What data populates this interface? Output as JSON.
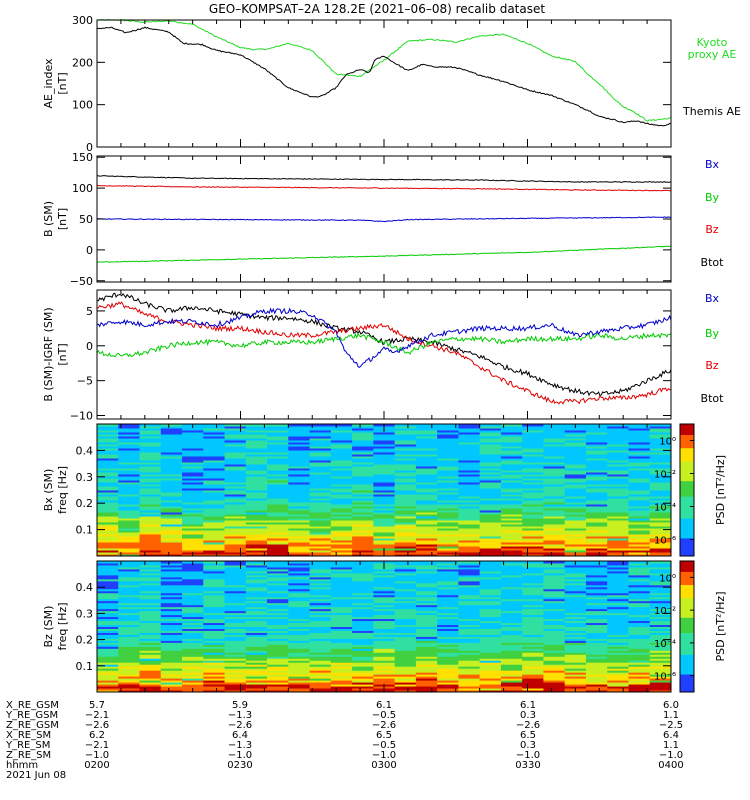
{
  "title": "GEO–KOMPSAT–2A 128.2E (2021–06–08) recalib dataset",
  "colors": {
    "black": "#000000",
    "red": "#e00000",
    "green": "#00cc00",
    "blue": "#0000cc",
    "kyoto": "#22dd22"
  },
  "chart_data": [
    {
      "type": "line",
      "panel": "ae",
      "ylabel": "AE_index",
      "yunit": "[nT]",
      "ylim": [
        0,
        300
      ],
      "yticks": [
        0,
        100,
        200,
        300
      ],
      "xlim": [
        0,
        120
      ],
      "series": [
        {
          "name": "Kyoto proxy AE",
          "label_lines": [
            "Kyoto",
            "proxy AE"
          ],
          "color": "#22dd22",
          "x": [
            0,
            5,
            10,
            15,
            20,
            25,
            30,
            33,
            36,
            40,
            45,
            50,
            55,
            60,
            65,
            70,
            75,
            80,
            85,
            90,
            95,
            100,
            103,
            105,
            108,
            110,
            112,
            115,
            120
          ],
          "y": [
            300,
            300,
            295,
            298,
            290,
            260,
            235,
            230,
            232,
            245,
            228,
            172,
            167,
            205,
            250,
            254,
            248,
            262,
            266,
            245,
            215,
            202,
            168,
            150,
            115,
            95,
            85,
            62,
            68
          ]
        },
        {
          "name": "Themis AE",
          "label_lines": [
            "Themis AE"
          ],
          "color": "#000000",
          "x": [
            0,
            3,
            6,
            10,
            15,
            18,
            22,
            25,
            28,
            30,
            35,
            40,
            45,
            47,
            50,
            52,
            55,
            57,
            58,
            60,
            62,
            65,
            68,
            70,
            75,
            80,
            85,
            90,
            95,
            100,
            103,
            105,
            108,
            110,
            113,
            115,
            118,
            120
          ],
          "y": [
            280,
            282,
            270,
            282,
            272,
            245,
            242,
            228,
            222,
            218,
            185,
            140,
            118,
            120,
            140,
            170,
            183,
            175,
            205,
            215,
            200,
            180,
            195,
            190,
            188,
            170,
            155,
            135,
            122,
            100,
            85,
            72,
            65,
            58,
            62,
            55,
            50,
            55
          ]
        }
      ]
    },
    {
      "type": "line",
      "panel": "b",
      "ylabel": "B (SM)",
      "yunit": "[nT]",
      "ylim": [
        -52,
        152
      ],
      "yticks": [
        -50,
        0,
        50,
        100,
        150
      ],
      "xlim": [
        0,
        120
      ],
      "series": [
        {
          "name": "Btot",
          "color": "#000000",
          "x": [
            0,
            20,
            40,
            60,
            80,
            100,
            120
          ],
          "y": [
            120,
            116,
            115,
            114,
            113,
            110,
            110
          ]
        },
        {
          "name": "Bz",
          "color": "#e00000",
          "x": [
            0,
            20,
            40,
            60,
            80,
            100,
            120
          ],
          "y": [
            104,
            102,
            101,
            100,
            99,
            97,
            96
          ]
        },
        {
          "name": "By",
          "color": "#00cc00",
          "x": [
            0,
            30,
            60,
            90,
            120
          ],
          "y": [
            -20,
            -15,
            -10,
            -4,
            6
          ]
        },
        {
          "name": "Bx",
          "color": "#0000cc",
          "x": [
            0,
            30,
            55,
            60,
            65,
            90,
            120
          ],
          "y": [
            50,
            49,
            48,
            46,
            49,
            51,
            53
          ]
        }
      ]
    },
    {
      "type": "line",
      "panel": "dbig",
      "ylabel": "B (SM)-IGRF (SM)",
      "yunit": "[nT]",
      "ylim": [
        -10.5,
        8
      ],
      "yticks": [
        -10,
        -5,
        0,
        5
      ],
      "xlim": [
        0,
        120
      ],
      "series": [
        {
          "name": "Btot",
          "color": "#000000",
          "x": [
            0,
            5,
            10,
            15,
            20,
            25,
            30,
            35,
            40,
            45,
            50,
            55,
            60,
            65,
            70,
            75,
            80,
            85,
            90,
            95,
            100,
            105,
            110,
            115,
            120
          ],
          "y": [
            6.5,
            7.5,
            6,
            5,
            5.5,
            5,
            4.5,
            4,
            4,
            3.5,
            2.5,
            2,
            0.5,
            1,
            0.5,
            -0.5,
            -1.5,
            -3,
            -4,
            -5.5,
            -6.5,
            -7,
            -6.5,
            -5,
            -3.5
          ]
        },
        {
          "name": "Bz",
          "color": "#e00000",
          "x": [
            0,
            5,
            10,
            15,
            20,
            25,
            30,
            35,
            40,
            45,
            50,
            55,
            60,
            65,
            70,
            75,
            80,
            85,
            90,
            95,
            100,
            105,
            110,
            115,
            120
          ],
          "y": [
            5.5,
            6,
            4.5,
            3.5,
            3,
            2.5,
            2.5,
            2,
            1.5,
            1.5,
            2,
            2.5,
            3,
            1,
            0,
            -1,
            -3,
            -5,
            -6.5,
            -8,
            -8,
            -7.5,
            -7.5,
            -7,
            -6
          ]
        },
        {
          "name": "By",
          "color": "#00cc00",
          "x": [
            0,
            5,
            10,
            15,
            20,
            25,
            30,
            35,
            40,
            45,
            50,
            55,
            60,
            65,
            70,
            75,
            80,
            85,
            90,
            95,
            100,
            105,
            110,
            115,
            120
          ],
          "y": [
            -1,
            -1.5,
            -1,
            0,
            0.5,
            0.5,
            0,
            0.5,
            0.5,
            0.5,
            1,
            1.5,
            0.5,
            -1,
            0.5,
            1,
            1,
            0.5,
            1,
            1,
            1,
            1.5,
            1,
            1.5,
            1.5
          ]
        },
        {
          "name": "Bx",
          "color": "#0000cc",
          "x": [
            0,
            5,
            10,
            15,
            20,
            25,
            30,
            35,
            40,
            45,
            50,
            52,
            55,
            58,
            60,
            62,
            65,
            70,
            75,
            80,
            85,
            90,
            95,
            100,
            105,
            110,
            115,
            120
          ],
          "y": [
            3,
            3.5,
            3,
            3.5,
            3.5,
            3,
            4,
            5,
            5,
            4.5,
            2,
            -1,
            -3,
            -1.5,
            -0.5,
            -1,
            0,
            1.5,
            2,
            2.5,
            2.5,
            2.5,
            3,
            1.5,
            2,
            2.5,
            3,
            4
          ]
        }
      ]
    },
    {
      "type": "heatmap",
      "panel": "bx",
      "ylabel": "Bx (SM)",
      "yunit": "freq [Hz]",
      "ylim": [
        0,
        0.5
      ],
      "yticks": [
        0.1,
        0.2,
        0.3,
        0.4
      ],
      "colorbar_label": "PSD [nT²/Hz]",
      "colorbar_ticks": [
        "10⁰",
        "10⁻²",
        "10⁻⁴",
        "10⁻⁶"
      ],
      "colorbar_exponents": [
        0,
        -2,
        -4,
        -6
      ]
    },
    {
      "type": "heatmap",
      "panel": "bz",
      "ylabel": "Bz (SM)",
      "yunit": "freq [Hz]",
      "ylim": [
        0,
        0.5
      ],
      "yticks": [
        0.1,
        0.2,
        0.3,
        0.4
      ],
      "colorbar_label": "PSD [nT²/Hz]",
      "colorbar_ticks": [
        "10⁰",
        "10⁻²",
        "10⁻⁴",
        "10⁻⁶"
      ],
      "colorbar_exponents": [
        0,
        -2,
        -4,
        -6
      ]
    }
  ],
  "ephemeris": {
    "labels": [
      "X_RE_GSM",
      "Y_RE_GSM",
      "Z_RE_GSM",
      "X_RE_SM",
      "Y_RE_SM",
      "Z_RE_SM",
      "hhmm",
      "2021 Jun 08"
    ],
    "columns": [
      [
        "5.7",
        "−2.1",
        "−2.6",
        "6.2",
        "−2.1",
        "−1.0",
        "0200"
      ],
      [
        "5.9",
        "−1.3",
        "−2.6",
        "6.4",
        "−1.3",
        "−1.0",
        "0230"
      ],
      [
        "6.1",
        "−0.5",
        "−2.6",
        "6.5",
        "−0.5",
        "−1.0",
        "0300"
      ],
      [
        "6.1",
        "0.3",
        "−2.6",
        "6.5",
        "0.3",
        "−1.0",
        "0330"
      ],
      [
        "6.0",
        "1.1",
        "−2.5",
        "6.4",
        "1.1",
        "−1.0",
        "0400"
      ]
    ]
  }
}
